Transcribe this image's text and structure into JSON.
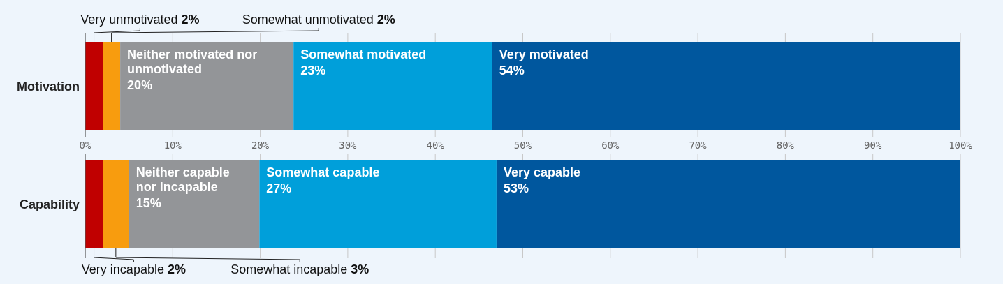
{
  "chart_data": {
    "type": "bar",
    "orientation": "horizontal",
    "stacked": true,
    "categories": [
      "Motivation",
      "Capability"
    ],
    "xlim": [
      0,
      100
    ],
    "xticks": [
      {
        "value": 0,
        "label": "0%"
      },
      {
        "value": 10,
        "label": "10%"
      },
      {
        "value": 20,
        "label": "20%"
      },
      {
        "value": 30,
        "label": "30%"
      },
      {
        "value": 40,
        "label": "40%"
      },
      {
        "value": 50,
        "label": "50%"
      },
      {
        "value": 60,
        "label": "60%"
      },
      {
        "value": 70,
        "label": "70%"
      },
      {
        "value": 80,
        "label": "80%"
      },
      {
        "value": 90,
        "label": "90%"
      },
      {
        "value": 100,
        "label": "100%"
      }
    ],
    "grid": "x",
    "series": [
      {
        "color": "#c00000",
        "values": [
          2,
          2
        ],
        "value_labels": [
          "Very unmotivated 2%",
          "Very incapable 2%"
        ]
      },
      {
        "color": "#f89c0e",
        "values": [
          2,
          3
        ],
        "value_labels": [
          "Somewhat unmotivated 2%",
          "Somewhat incapable 3%"
        ]
      },
      {
        "color": "#939598",
        "values": [
          19.8,
          14.9
        ],
        "value_labels": [
          "Neither motivated nor unmotivated 20%",
          "Neither capable nor incapable 15%"
        ]
      },
      {
        "color": "#009fda",
        "values": [
          22.7,
          27.1
        ],
        "value_labels": [
          "Somewhat motivated 23%",
          "Somewhat capable 27%"
        ]
      },
      {
        "color": "#00579e",
        "values": [
          53.5,
          53
        ],
        "value_labels": [
          "Very motivated 54%",
          "Very capable 53%"
        ]
      }
    ]
  }
}
